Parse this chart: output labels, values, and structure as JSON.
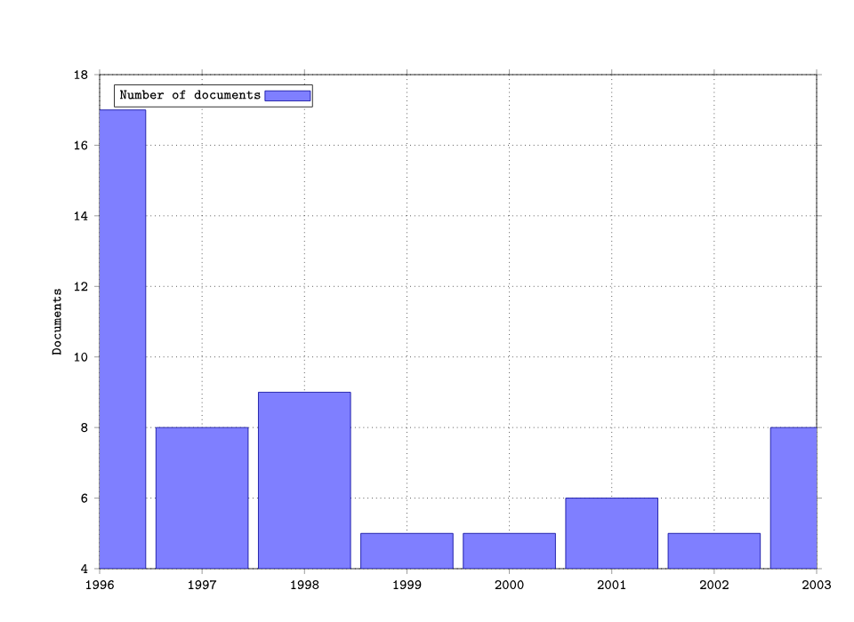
{
  "chart_data": {
    "type": "bar",
    "ylabel": "Documents",
    "x": [
      1996,
      1997,
      1998,
      1999,
      2000,
      2001,
      2002,
      2003
    ],
    "series": [
      {
        "name": "Number of documents",
        "color": "#7f7fff",
        "values": [
          17,
          8,
          9,
          5,
          5,
          6,
          5,
          8
        ]
      }
    ],
    "xlim": [
      1996,
      2003
    ],
    "xticks": [
      1996,
      1997,
      1998,
      1999,
      2000,
      2001,
      2002,
      2003
    ],
    "ylim": [
      4,
      18
    ],
    "yticks": [
      4,
      6,
      8,
      10,
      12,
      14,
      16,
      18
    ],
    "grid": true,
    "legend": "top left"
  }
}
